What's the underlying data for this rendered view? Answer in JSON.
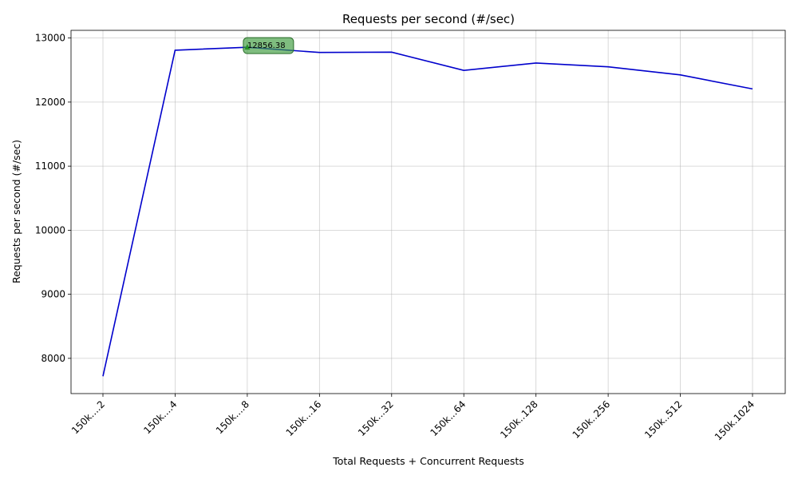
{
  "chart_data": {
    "type": "line",
    "title": "Requests per second (#/sec)",
    "xlabel": "Total Requests + Concurrent Requests",
    "ylabel": "Requests per second (#/sec)",
    "categories": [
      "150k....2",
      "150k....4",
      "150k....8",
      "150k...16",
      "150k...32",
      "150k...64",
      "150k..128",
      "150k..256",
      "150k..512",
      "150k.1024"
    ],
    "series": [
      {
        "color": "#0000cc",
        "values": [
          7720,
          12810,
          12856.38,
          12775,
          12780,
          12495,
          12610,
          12550,
          12425,
          12205
        ]
      }
    ],
    "yticks": [
      8000,
      9000,
      10000,
      11000,
      12000,
      13000
    ],
    "ylim": [
      7450,
      13120
    ],
    "grid": true,
    "annotation": {
      "index": 2,
      "text": "12856.38",
      "marker_color": "#008000"
    }
  }
}
